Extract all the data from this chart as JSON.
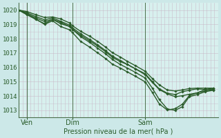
{
  "background_color": "#cce8e8",
  "plot_bg_color": "#d8f0ee",
  "grid_color": "#c8b8c8",
  "line_color": "#2a5c2a",
  "marker_color": "#2a5c2a",
  "ylabel_values": [
    1013,
    1014,
    1015,
    1016,
    1017,
    1018,
    1019,
    1020
  ],
  "ylim": [
    1012.5,
    1020.5
  ],
  "xlim": [
    0,
    1.0
  ],
  "xlabel": "Pression niveau de la mer( hPa )",
  "xtick_positions": [
    0.04,
    0.27,
    0.635
  ],
  "xtick_labels": [
    "Ven",
    "Dim",
    "Sam"
  ],
  "vline_positions": [
    0.04,
    0.27,
    0.635
  ],
  "n_vgrid": 52,
  "series": [
    {
      "x": [
        0.0,
        0.04,
        0.085,
        0.13,
        0.17,
        0.21,
        0.255,
        0.27,
        0.31,
        0.355,
        0.395,
        0.435,
        0.47,
        0.51,
        0.545,
        0.585,
        0.635,
        0.67,
        0.705,
        0.745,
        0.785,
        0.82,
        0.855,
        0.895,
        0.935,
        0.975
      ],
      "y": [
        1020.0,
        1019.7,
        1019.35,
        1019.05,
        1019.35,
        1019.05,
        1018.85,
        1018.65,
        1018.15,
        1017.75,
        1017.35,
        1016.95,
        1016.55,
        1016.2,
        1015.95,
        1015.65,
        1015.25,
        1014.55,
        1013.75,
        1013.1,
        1013.0,
        1013.25,
        1013.95,
        1014.1,
        1014.3,
        1014.4
      ],
      "lw": 1.0
    },
    {
      "x": [
        0.0,
        0.04,
        0.085,
        0.13,
        0.17,
        0.21,
        0.255,
        0.27,
        0.31,
        0.355,
        0.395,
        0.435,
        0.47,
        0.51,
        0.545,
        0.585,
        0.635,
        0.67,
        0.705,
        0.745,
        0.785,
        0.82,
        0.855,
        0.895,
        0.935,
        0.975
      ],
      "y": [
        1020.0,
        1019.75,
        1019.45,
        1019.2,
        1019.35,
        1019.15,
        1018.85,
        1018.65,
        1018.25,
        1017.85,
        1017.5,
        1017.1,
        1016.7,
        1016.4,
        1016.2,
        1015.9,
        1015.55,
        1015.0,
        1014.5,
        1014.2,
        1014.1,
        1014.3,
        1014.4,
        1014.5,
        1014.45,
        1014.45
      ],
      "lw": 1.0
    },
    {
      "x": [
        0.0,
        0.04,
        0.085,
        0.13,
        0.17,
        0.21,
        0.255,
        0.27,
        0.31,
        0.355,
        0.395,
        0.435,
        0.47,
        0.51,
        0.545,
        0.585,
        0.635,
        0.67,
        0.705,
        0.745,
        0.785,
        0.82,
        0.855,
        0.895,
        0.935,
        0.975
      ],
      "y": [
        1020.0,
        1019.82,
        1019.55,
        1019.32,
        1019.45,
        1019.22,
        1018.95,
        1018.75,
        1018.35,
        1017.95,
        1017.58,
        1017.18,
        1016.78,
        1016.48,
        1016.2,
        1015.9,
        1015.48,
        1014.95,
        1014.45,
        1014.15,
        1013.95,
        1014.02,
        1014.12,
        1014.22,
        1014.35,
        1014.45
      ],
      "lw": 1.0
    },
    {
      "x": [
        0.0,
        0.04,
        0.085,
        0.13,
        0.17,
        0.21,
        0.255,
        0.27,
        0.31,
        0.355,
        0.395,
        0.435,
        0.47,
        0.51,
        0.545,
        0.585,
        0.635,
        0.67,
        0.705,
        0.745,
        0.785,
        0.82,
        0.855,
        0.895,
        0.935,
        0.975
      ],
      "y": [
        1020.0,
        1019.68,
        1019.38,
        1019.0,
        1019.25,
        1018.85,
        1018.62,
        1018.42,
        1017.82,
        1017.42,
        1017.02,
        1016.62,
        1016.22,
        1015.95,
        1015.68,
        1015.38,
        1014.98,
        1014.25,
        1013.45,
        1013.02,
        1013.12,
        1013.42,
        1014.02,
        1014.22,
        1014.45,
        1014.55
      ],
      "lw": 1.0
    },
    {
      "x": [
        0.0,
        0.04,
        0.085,
        0.13,
        0.17,
        0.21,
        0.255,
        0.27,
        0.31,
        0.355,
        0.395,
        0.435,
        0.47,
        0.51,
        0.545,
        0.585,
        0.635,
        0.67,
        0.705,
        0.745,
        0.785,
        0.82,
        0.855,
        0.895,
        0.935,
        0.975
      ],
      "y": [
        1020.0,
        1019.9,
        1019.68,
        1019.48,
        1019.52,
        1019.38,
        1019.1,
        1018.9,
        1018.52,
        1018.18,
        1017.82,
        1017.42,
        1017.02,
        1016.72,
        1016.42,
        1016.12,
        1015.72,
        1015.22,
        1014.78,
        1014.42,
        1014.35,
        1014.42,
        1014.52,
        1014.55,
        1014.55,
        1014.55
      ],
      "lw": 1.0
    }
  ]
}
